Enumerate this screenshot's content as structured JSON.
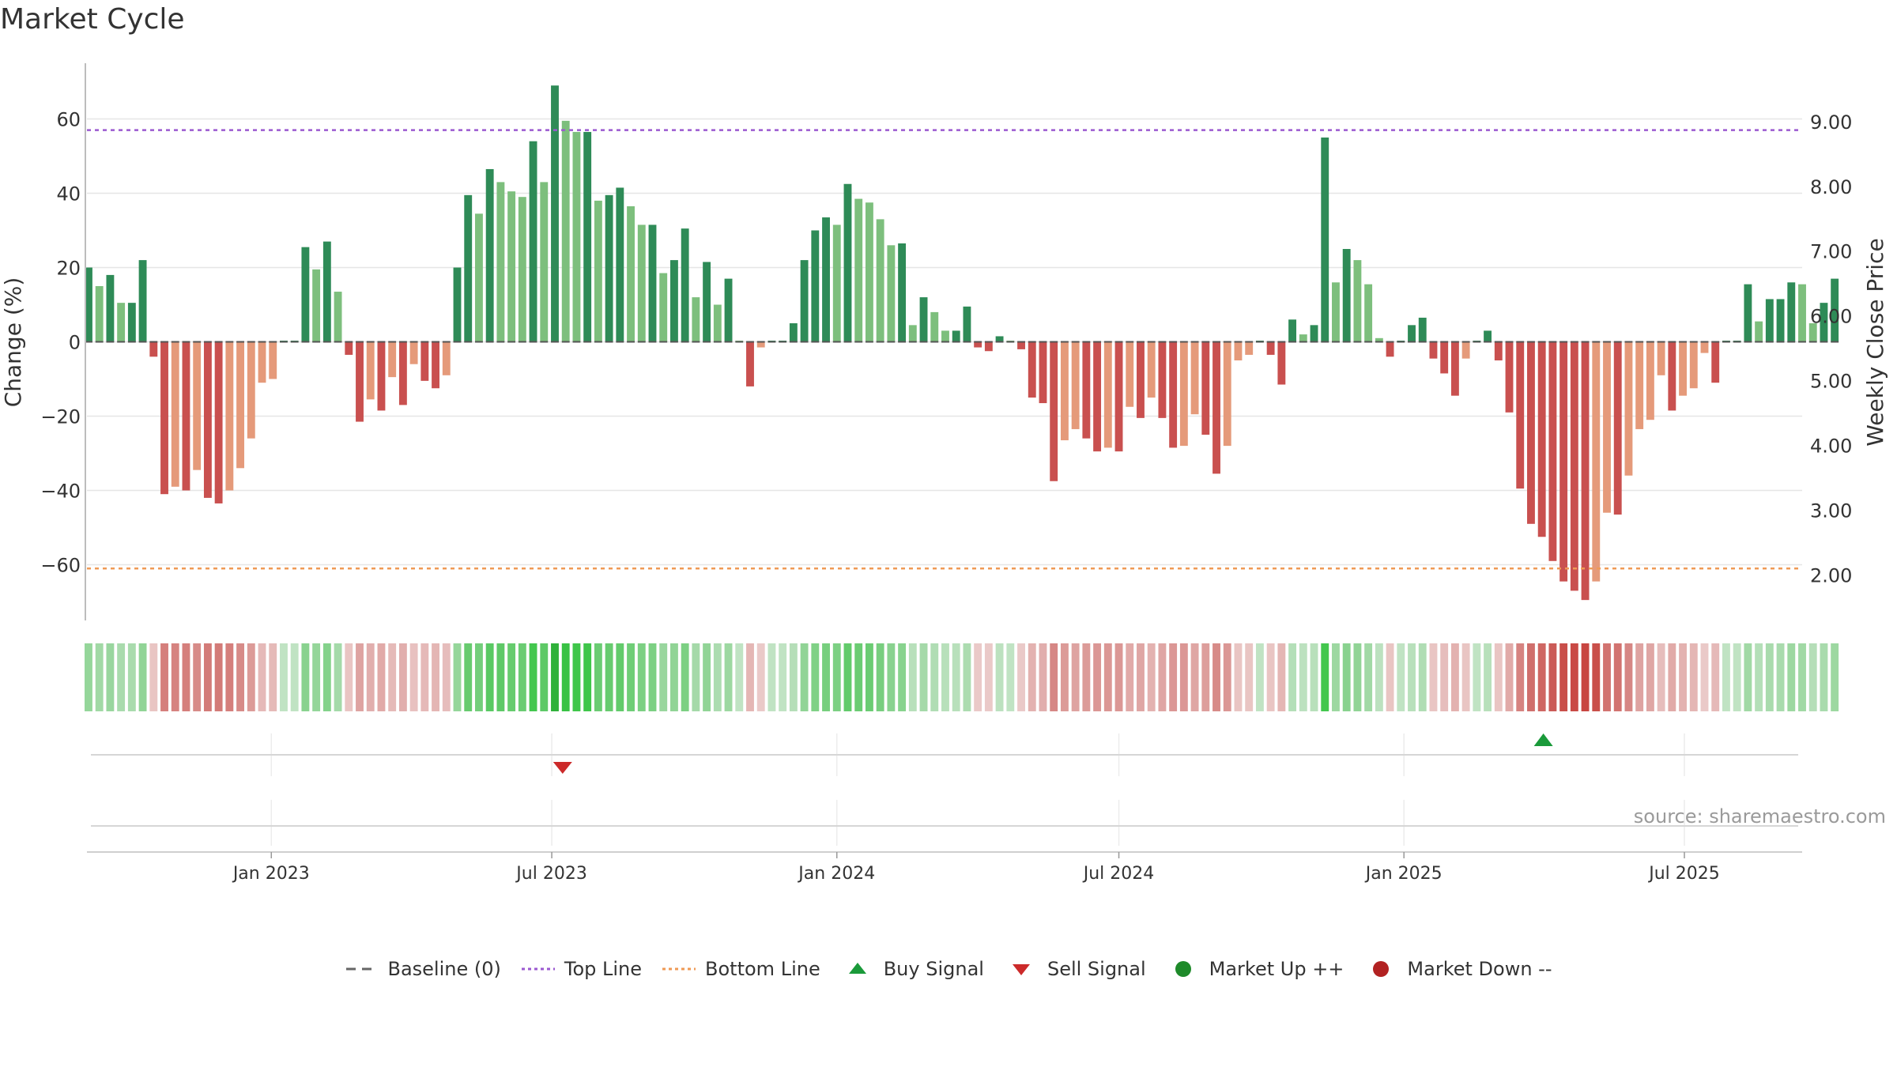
{
  "title": "Market Cycle",
  "source": "source: sharemaestro.com",
  "colors": {
    "up_strong": "#2e8b57",
    "up_light": "#7dbf7d",
    "down_strong": "#c9504f",
    "down_light": "#e59a7a",
    "top_line": "#9b59d0",
    "bottom_line": "#ef9a55",
    "buy": "#1a9a3a",
    "sell": "#cc2a2a",
    "market_up": "#1e8a2a",
    "market_down": "#b22222"
  },
  "chart_data": {
    "type": "bar",
    "title": "Market Cycle",
    "ylabel": "Change (%)",
    "y2label": "Weekly Close Price",
    "ylim": [
      -75,
      75
    ],
    "yticks": [
      60,
      40,
      20,
      0,
      -20,
      -40,
      -60
    ],
    "ytick_labels": [
      "60",
      "40",
      "20",
      "0",
      "−20",
      "−40",
      "−60"
    ],
    "y2lim": [
      1.3,
      9.9
    ],
    "y2ticks": [
      9.0,
      8.0,
      7.0,
      6.0,
      5.0,
      4.0,
      3.0,
      2.0
    ],
    "y2tick_labels": [
      "9.00",
      "8.00",
      "7.00",
      "6.00",
      "5.00",
      "4.00",
      "3.00",
      "2.00"
    ],
    "top_line": 57,
    "bottom_line": -61,
    "x_start": "2022-09-05",
    "x_step_days": 7,
    "xlim": [
      "2022-09-04",
      "2025-09-15"
    ],
    "xticks": [
      "2023-01-01",
      "2023-07-01",
      "2024-01-01",
      "2024-07-01",
      "2025-01-01",
      "2025-07-01"
    ],
    "xtick_labels": [
      "Jan 2023",
      "Jul 2023",
      "Jan 2024",
      "Jul 2024",
      "Jan 2025",
      "Jul 2025"
    ],
    "values": [
      20,
      15,
      18,
      10.5,
      10.5,
      22,
      -4,
      -41,
      -39,
      -40,
      -34.5,
      -42,
      -43.5,
      -40,
      -34,
      -26,
      -11,
      -10,
      0,
      0,
      25.5,
      19.5,
      27,
      13.5,
      -3.5,
      -21.5,
      -15.5,
      -18.5,
      -9.5,
      -17,
      -6,
      -10.5,
      -12.5,
      -9,
      20,
      39.5,
      34.5,
      46.5,
      43,
      40.5,
      39,
      54,
      43,
      69,
      59.5,
      56.5,
      56.5,
      38,
      39.5,
      41.5,
      36.5,
      31.5,
      31.5,
      18.5,
      22,
      30.5,
      12,
      21.5,
      10,
      17,
      0,
      -12,
      -1.5,
      0,
      0,
      5,
      22,
      30,
      33.5,
      31.5,
      42.5,
      38.5,
      37.5,
      33,
      26,
      26.5,
      4.5,
      12,
      8,
      3,
      3,
      9.5,
      -1.5,
      -2.5,
      1.5,
      0,
      -2,
      -15,
      -16.5,
      -37.5,
      -26.5,
      -23.5,
      -26,
      -29.5,
      -28.5,
      -29.5,
      -17.5,
      -20.5,
      -15,
      -20.5,
      -28.5,
      -28,
      -19.5,
      -25,
      -35.5,
      -28,
      -5,
      -3.5,
      0,
      -3.5,
      -11.5,
      6,
      2,
      4.5,
      55,
      16,
      25,
      22,
      15.5,
      1,
      -4,
      0,
      4.5,
      6.5,
      -4.5,
      -8.5,
      -14.5,
      -4.5,
      0,
      3,
      -5,
      -19,
      -39.5,
      -49,
      -52.5,
      -59,
      -64.5,
      -67,
      -69.5,
      -64.5,
      -46,
      -46.5,
      -36,
      -23.5,
      -21,
      -9,
      -18.5,
      -14.5,
      -12.5,
      -3,
      -11,
      0,
      0,
      15.5,
      5.5,
      11.5,
      11.5,
      16,
      15.5,
      5,
      10.5,
      17
    ],
    "signals": [
      {
        "type": "sell",
        "date": "2023-07-08"
      },
      {
        "type": "buy",
        "date": "2025-04-01"
      }
    ]
  },
  "legend": [
    {
      "key": "baseline",
      "label": "Baseline (0)"
    },
    {
      "key": "top",
      "label": "Top Line"
    },
    {
      "key": "bottom",
      "label": "Bottom Line"
    },
    {
      "key": "buy",
      "label": "Buy Signal"
    },
    {
      "key": "sell",
      "label": "Sell Signal"
    },
    {
      "key": "market_up",
      "label": "Market Up ++"
    },
    {
      "key": "market_down",
      "label": "Market Down --"
    }
  ]
}
